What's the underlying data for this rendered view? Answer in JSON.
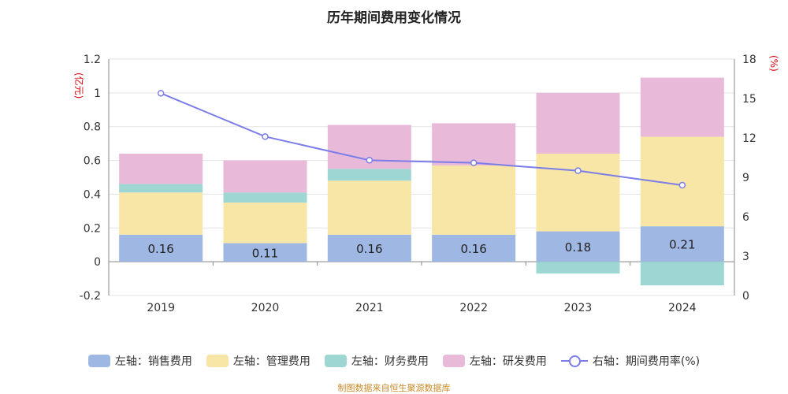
{
  "chart_data": {
    "type": "bar",
    "title": "历年期间费用变化情况",
    "left_unit": "(亿元)",
    "right_unit": "(%)",
    "categories": [
      "2019",
      "2020",
      "2021",
      "2022",
      "2023",
      "2024"
    ],
    "left_axis": {
      "min": -0.2,
      "max": 1.2,
      "ticks": [
        "-0.2",
        "0",
        "0.2",
        "0.4",
        "0.6",
        "0.8",
        "1",
        "1.2"
      ]
    },
    "right_axis": {
      "min": 0,
      "max": 18,
      "ticks": [
        "0",
        "3",
        "6",
        "9",
        "12",
        "15",
        "18"
      ]
    },
    "series": [
      {
        "name": "左轴：销售费用",
        "color": "#9fb7e3",
        "values": [
          0.16,
          0.11,
          0.16,
          0.16,
          0.18,
          0.21
        ],
        "labels": [
          "0.16",
          "0.11",
          "0.16",
          "0.16",
          "0.18",
          "0.21"
        ]
      },
      {
        "name": "左轴：管理费用",
        "color": "#f7e6a6",
        "values": [
          0.25,
          0.24,
          0.32,
          0.41,
          0.46,
          0.53
        ]
      },
      {
        "name": "左轴：财务费用",
        "color": "#9dd6d2",
        "values": [
          0.05,
          0.06,
          0.07,
          0.0,
          -0.07,
          -0.14
        ]
      },
      {
        "name": "左轴：研发费用",
        "color": "#e8b9d9",
        "values": [
          0.18,
          0.19,
          0.26,
          0.25,
          0.36,
          0.35
        ]
      }
    ],
    "line": {
      "name": "右轴：期间费用率(%)",
      "color": "#7b7de8",
      "values": [
        15.4,
        12.1,
        10.3,
        10.1,
        9.5,
        8.4
      ]
    },
    "grid": true,
    "legend_position": "bottom"
  },
  "source": "制图数据来自恒生聚源数据库"
}
